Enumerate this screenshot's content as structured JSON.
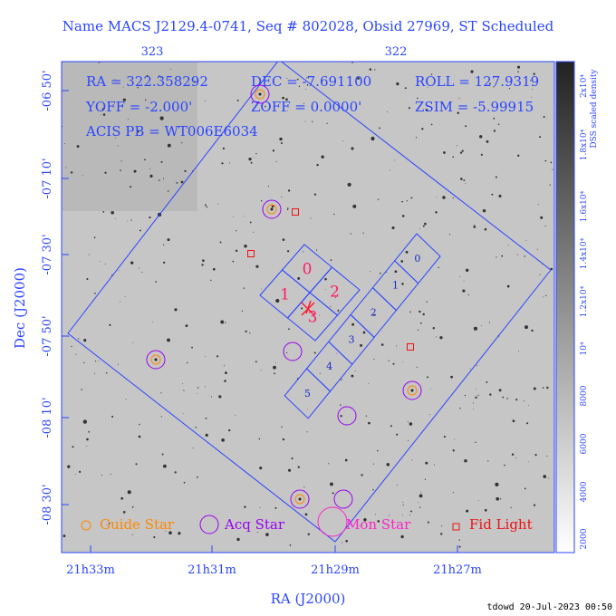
{
  "header": {
    "title": "Name MACS J2129.4-0741, Seq # 802028, Obsid 27969, ST Scheduled"
  },
  "top_axis": {
    "labels": [
      "323",
      "322"
    ]
  },
  "y_axis": {
    "title": "Dec (J2000)",
    "labels": [
      "-06 50'",
      "-07 10'",
      "-07 30'",
      "-07 50'",
      "-08 10'",
      "-08 30'"
    ]
  },
  "x_axis": {
    "title": "RA (J2000)",
    "labels": [
      "21h33m",
      "21h31m",
      "21h29m",
      "21h27m"
    ]
  },
  "info": {
    "rows": [
      [
        "RA = 322.358292",
        "DEC = -7.691100",
        "ROLL = 127.9319"
      ],
      [
        "YOFF = -2.000'",
        "ZOFF = 0.0000'",
        "ZSIM = -5.99915"
      ],
      [
        "ACIS PB = WT006E6034"
      ]
    ]
  },
  "acis_i": {
    "chips": [
      "0",
      "1",
      "2",
      "3"
    ]
  },
  "acis_s": {
    "chips": [
      "0",
      "1",
      "2",
      "3",
      "4",
      "5"
    ]
  },
  "legend": {
    "items": [
      "Guide Star",
      "Acq Star",
      "Mon Star",
      "Fid Light"
    ]
  },
  "colorbar": {
    "title": "DSS scaled density",
    "labels": [
      "2000",
      "4000",
      "6000",
      "8000",
      "10⁴",
      "1.2x10⁴",
      "1.4x10⁴",
      "1.6x10⁴",
      "1.8x10⁴",
      "2x10⁴"
    ]
  },
  "footer": {
    "text": "tdowd 20-Jul-2023 00:50"
  }
}
